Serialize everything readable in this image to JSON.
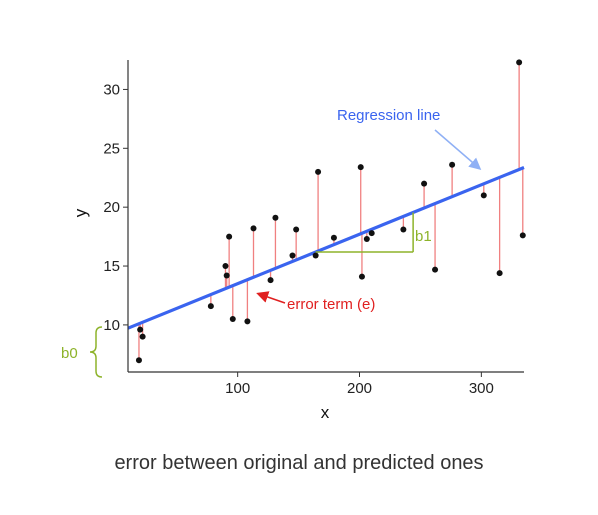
{
  "caption": "error between original and predicted ones",
  "colors": {
    "regression_line": "#3a64ef",
    "residual": "#f08080",
    "points": "#111111",
    "annotation_green": "#8db32a",
    "annotation_blue": "#3a64ef",
    "annotation_red": "#e02020",
    "axis": "#333333"
  },
  "annotations": {
    "regression_label": "Regression line",
    "error_label": "error term (e)",
    "b0_label": "b0",
    "b1_label": "b1"
  },
  "chart_data": {
    "type": "scatter",
    "title": "",
    "xlabel": "x",
    "ylabel": "y",
    "xlim": [
      10,
      335
    ],
    "ylim": [
      6,
      32.5
    ],
    "xticks": [
      100,
      200,
      300
    ],
    "yticks": [
      10,
      15,
      20,
      25,
      30
    ],
    "grid": false,
    "regression": {
      "intercept": 9.3,
      "slope": 0.042
    },
    "b1_segment": {
      "x_start": 164,
      "x_end": 244
    },
    "points": [
      {
        "x": 19,
        "y": 7.0
      },
      {
        "x": 20,
        "y": 9.6
      },
      {
        "x": 22,
        "y": 9.0
      },
      {
        "x": 78,
        "y": 11.6
      },
      {
        "x": 90,
        "y": 15.0
      },
      {
        "x": 91,
        "y": 14.2
      },
      {
        "x": 93,
        "y": 17.5
      },
      {
        "x": 96,
        "y": 10.5
      },
      {
        "x": 108,
        "y": 10.3
      },
      {
        "x": 113,
        "y": 18.2
      },
      {
        "x": 127,
        "y": 13.8
      },
      {
        "x": 131,
        "y": 19.1
      },
      {
        "x": 145,
        "y": 15.9
      },
      {
        "x": 148,
        "y": 18.1
      },
      {
        "x": 164,
        "y": 15.9
      },
      {
        "x": 166,
        "y": 23.0
      },
      {
        "x": 179,
        "y": 17.4
      },
      {
        "x": 201,
        "y": 23.4
      },
      {
        "x": 202,
        "y": 14.1
      },
      {
        "x": 206,
        "y": 17.3
      },
      {
        "x": 210,
        "y": 17.8
      },
      {
        "x": 236,
        "y": 18.1
      },
      {
        "x": 253,
        "y": 22.0
      },
      {
        "x": 262,
        "y": 14.7
      },
      {
        "x": 276,
        "y": 23.6
      },
      {
        "x": 302,
        "y": 21.0
      },
      {
        "x": 315,
        "y": 14.4
      },
      {
        "x": 331,
        "y": 32.3
      },
      {
        "x": 334,
        "y": 17.6
      }
    ]
  }
}
